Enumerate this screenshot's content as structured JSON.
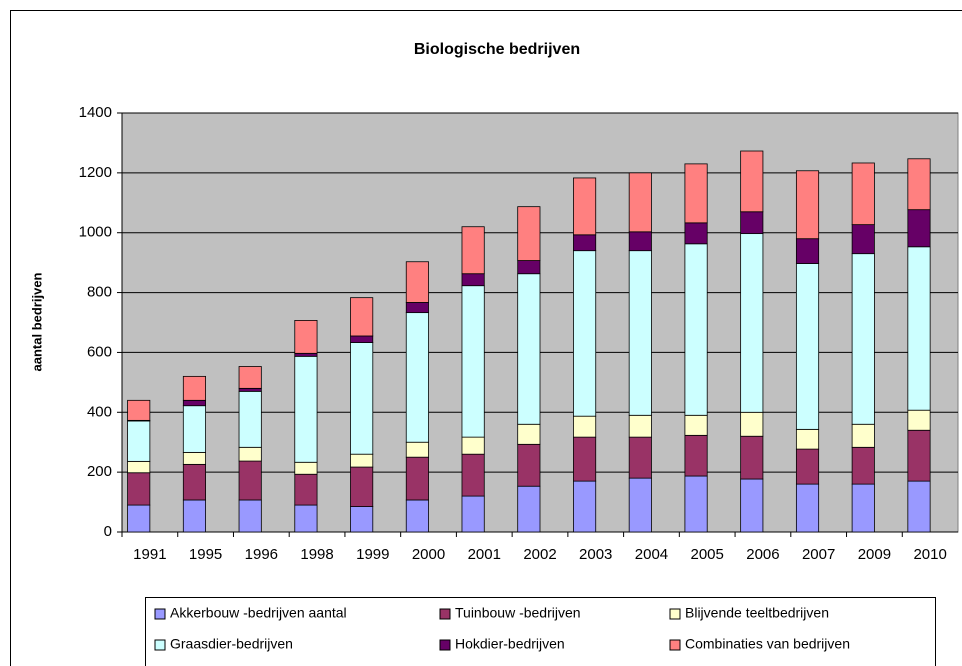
{
  "chart_data": {
    "type": "stacked_bar",
    "title": "Biologische bedrijven",
    "y_label": "aantal bedrijven",
    "categories": [
      "1991",
      "1995",
      "1996",
      "1998",
      "1999",
      "2000",
      "2001",
      "2002",
      "2003",
      "2004",
      "2005",
      "2006",
      "2007",
      "2009",
      "2010"
    ],
    "series": [
      {
        "name": "Akkerbouw -bedrijven aantal",
        "color": "#9999ff",
        "values": [
          90,
          107,
          107,
          90,
          85,
          107,
          120,
          153,
          170,
          180,
          187,
          177,
          160,
          160,
          170
        ]
      },
      {
        "name": "Tuinbouw -bedrijven",
        "color": "#993366",
        "values": [
          108,
          119,
          130,
          103,
          132,
          143,
          140,
          140,
          147,
          137,
          136,
          143,
          117,
          123,
          170
        ]
      },
      {
        "name": "Blijvende teeltbedrijven",
        "color": "#ffffcc",
        "values": [
          38,
          40,
          46,
          40,
          43,
          50,
          57,
          67,
          70,
          73,
          67,
          80,
          66,
          77,
          67
        ]
      },
      {
        "name": "Graasdier-bedrijven",
        "color": "#ccffff",
        "values": [
          135,
          156,
          187,
          354,
          373,
          433,
          506,
          503,
          553,
          550,
          573,
          597,
          554,
          570,
          546
        ]
      },
      {
        "name": "Hokdier-bedrijven",
        "color": "#660066",
        "values": [
          2,
          18,
          10,
          10,
          22,
          34,
          40,
          44,
          53,
          63,
          70,
          73,
          83,
          97,
          124
        ]
      },
      {
        "name": "Combinaties van bedrijven",
        "color": "#ff8080",
        "values": [
          67,
          80,
          73,
          110,
          128,
          136,
          157,
          180,
          190,
          197,
          197,
          203,
          227,
          206,
          170
        ]
      }
    ],
    "ylim": [
      0,
      1400
    ],
    "yticks": [
      0,
      200,
      400,
      600,
      800,
      1000,
      1200,
      1400
    ],
    "grid": true,
    "plot_background": "#c0c0c0",
    "legend": "bottom"
  }
}
